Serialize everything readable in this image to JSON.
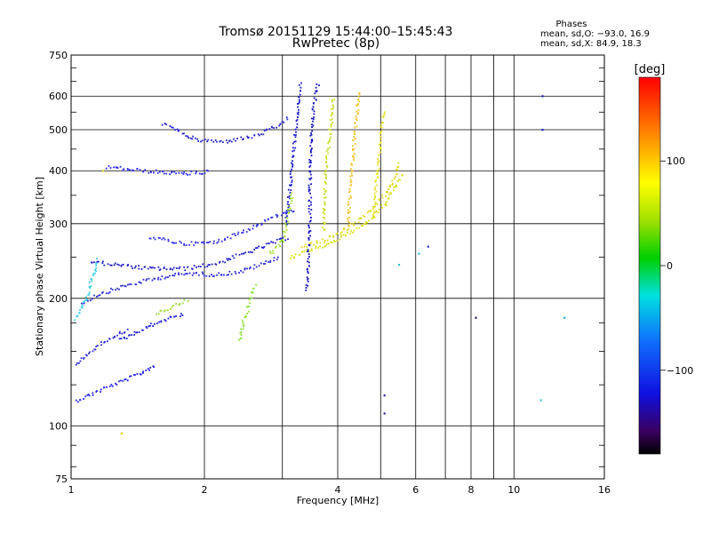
{
  "title": {
    "line1": "Tromsø 20151129 15:44:00–15:45:43",
    "line2": "RwPretec (8p)"
  },
  "stats": {
    "heading": "Phases",
    "o_line": "mean, sd,O: −93.0, 16.9",
    "x_line": "mean, sd,X:  84.9, 18.3"
  },
  "colorbar": {
    "unit": "[deg]",
    "ticks": [
      {
        "value": 100,
        "label": "100"
      },
      {
        "value": 0,
        "label": "0"
      },
      {
        "value": -100,
        "label": "−100"
      }
    ],
    "range": [
      -180,
      180
    ]
  },
  "chart_data": {
    "type": "scatter",
    "xlabel": "Frequency [MHz]",
    "ylabel": "Stationary phase Virtual Height [km]",
    "x_scale": "log",
    "y_scale": "log",
    "xlim": [
      1,
      16
    ],
    "ylim": [
      75,
      750
    ],
    "x_ticks": [
      {
        "value": 1,
        "label": "1"
      },
      {
        "value": 2,
        "label": "2"
      },
      {
        "value": 4,
        "label": "4"
      },
      {
        "value": 6,
        "label": "6"
      },
      {
        "value": 8,
        "label": "8"
      },
      {
        "value": 10,
        "label": "10"
      },
      {
        "value": 16,
        "label": "16"
      }
    ],
    "x_gridlines": [
      1,
      2,
      3,
      4,
      5,
      6,
      7,
      8,
      9,
      10,
      16
    ],
    "y_ticks": [
      {
        "value": 75,
        "label": "75"
      },
      {
        "value": 100,
        "label": "100"
      },
      {
        "value": 200,
        "label": "200"
      },
      {
        "value": 300,
        "label": "300"
      },
      {
        "value": 400,
        "label": "400"
      },
      {
        "value": 500,
        "label": "500"
      },
      {
        "value": 600,
        "label": "600"
      },
      {
        "value": 750,
        "label": "750"
      }
    ],
    "y_minor_ticks": [
      80,
      90,
      125,
      150,
      175,
      250,
      350,
      450,
      550,
      650,
      700
    ],
    "grid": true,
    "traces": [
      {
        "color": "#1f1fe6",
        "points": [
          [
            1.02,
            115
          ],
          [
            1.06,
            117
          ],
          [
            1.12,
            120
          ],
          [
            1.2,
            124
          ],
          [
            1.3,
            128
          ],
          [
            1.42,
            133
          ],
          [
            1.55,
            140
          ]
        ]
      },
      {
        "color": "#2a2ad8",
        "points": [
          [
            1.05,
            195
          ],
          [
            1.15,
            205
          ],
          [
            1.3,
            214
          ],
          [
            1.5,
            222
          ],
          [
            1.7,
            228
          ],
          [
            1.9,
            230
          ],
          [
            2.1,
            228
          ],
          [
            2.4,
            232
          ],
          [
            2.7,
            242
          ],
          [
            2.95,
            252
          ]
        ]
      },
      {
        "color": "#1c1cc8",
        "points": [
          [
            1.1,
            245
          ],
          [
            1.3,
            240
          ],
          [
            1.5,
            236
          ],
          [
            1.8,
            236
          ],
          [
            2.1,
            242
          ],
          [
            2.5,
            258
          ],
          [
            2.85,
            272
          ],
          [
            3.1,
            280
          ]
        ]
      },
      {
        "color": "#3030e0",
        "points": [
          [
            1.5,
            280
          ],
          [
            1.8,
            270
          ],
          [
            2.1,
            272
          ],
          [
            2.5,
            292
          ],
          [
            2.9,
            315
          ],
          [
            3.2,
            325
          ]
        ]
      },
      {
        "color": "#2424d0",
        "points": [
          [
            1.6,
            520
          ],
          [
            1.9,
            475
          ],
          [
            2.2,
            470
          ],
          [
            2.6,
            485
          ],
          [
            2.9,
            510
          ],
          [
            3.1,
            535
          ]
        ]
      },
      {
        "color": "#2a2aee",
        "points": [
          [
            1.2,
            410
          ],
          [
            1.5,
            400
          ],
          [
            1.8,
            395
          ],
          [
            2.05,
            400
          ]
        ]
      },
      {
        "color": "#1a1ad4",
        "points": [
          [
            1.28,
            160
          ],
          [
            1.45,
            170
          ],
          [
            1.6,
            178
          ],
          [
            1.8,
            185
          ]
        ]
      },
      {
        "color": "#2b2bd8",
        "points": [
          [
            1.02,
            140
          ],
          [
            1.1,
            150
          ],
          [
            1.2,
            160
          ],
          [
            1.35,
            170
          ]
        ]
      },
      {
        "color": "#1010c0",
        "points": [
          [
            3.4,
            210
          ],
          [
            3.42,
            260
          ],
          [
            3.45,
            320
          ],
          [
            3.45,
            380
          ],
          [
            3.46,
            430
          ],
          [
            3.47,
            480
          ],
          [
            3.5,
            540
          ],
          [
            3.55,
            600
          ],
          [
            3.6,
            650
          ]
        ]
      },
      {
        "color": "#1818d0",
        "points": [
          [
            3.05,
            300
          ],
          [
            3.1,
            360
          ],
          [
            3.15,
            420
          ],
          [
            3.2,
            500
          ],
          [
            3.25,
            580
          ],
          [
            3.28,
            650
          ]
        ]
      },
      {
        "color": "#d8e016",
        "points": [
          [
            3.1,
            250
          ],
          [
            3.4,
            260
          ],
          [
            3.8,
            270
          ],
          [
            4.2,
            285
          ],
          [
            4.6,
            300
          ],
          [
            5.1,
            335
          ],
          [
            5.6,
            395
          ]
        ]
      },
      {
        "color": "#e0d81a",
        "points": [
          [
            3.3,
            265
          ],
          [
            3.7,
            275
          ],
          [
            4.1,
            290
          ],
          [
            4.6,
            315
          ],
          [
            5.2,
            360
          ],
          [
            5.5,
            420
          ]
        ]
      },
      {
        "color": "#c8dc20",
        "points": [
          [
            3.7,
            290
          ],
          [
            3.72,
            340
          ],
          [
            3.75,
            400
          ],
          [
            3.8,
            460
          ],
          [
            3.85,
            520
          ],
          [
            3.9,
            600
          ]
        ]
      },
      {
        "color": "#f0c020",
        "points": [
          [
            4.2,
            300
          ],
          [
            4.25,
            360
          ],
          [
            4.3,
            420
          ],
          [
            4.35,
            480
          ],
          [
            4.4,
            540
          ],
          [
            4.45,
            620
          ]
        ]
      },
      {
        "color": "#e6e21e",
        "points": [
          [
            4.8,
            310
          ],
          [
            4.85,
            360
          ],
          [
            4.9,
            400
          ],
          [
            4.95,
            450
          ],
          [
            5.0,
            500
          ],
          [
            5.1,
            560
          ]
        ]
      },
      {
        "color": "#8ae034",
        "points": [
          [
            2.4,
            160
          ],
          [
            2.42,
            170
          ],
          [
            2.45,
            180
          ],
          [
            2.5,
            190
          ],
          [
            2.55,
            205
          ],
          [
            2.6,
            218
          ]
        ]
      },
      {
        "color": "#a0e028",
        "points": [
          [
            2.8,
            255
          ],
          [
            2.9,
            265
          ],
          [
            3.0,
            275
          ],
          [
            3.05,
            300
          ],
          [
            3.1,
            330
          ],
          [
            3.15,
            360
          ]
        ]
      },
      {
        "color": "#30d0e0",
        "points": [
          [
            1.02,
            180
          ],
          [
            1.05,
            190
          ],
          [
            1.08,
            200
          ],
          [
            1.1,
            215
          ],
          [
            1.12,
            230
          ],
          [
            1.15,
            250
          ]
        ]
      },
      {
        "color": "#9ed83c",
        "points": [
          [
            1.55,
            185
          ],
          [
            1.65,
            190
          ],
          [
            1.75,
            195
          ],
          [
            1.85,
            200
          ]
        ]
      }
    ],
    "outliers": [
      {
        "x": 5.1,
        "y": 118,
        "color": "#3020a0"
      },
      {
        "x": 5.1,
        "y": 107,
        "color": "#3020a0"
      },
      {
        "x": 8.2,
        "y": 180,
        "color": "#3a1a7a"
      },
      {
        "x": 13,
        "y": 180,
        "color": "#30a0e0"
      },
      {
        "x": 11.5,
        "y": 115,
        "color": "#40c0e0"
      },
      {
        "x": 11.6,
        "y": 600,
        "color": "#2020d0"
      },
      {
        "x": 11.6,
        "y": 500,
        "color": "#2020d0"
      },
      {
        "x": 6.4,
        "y": 265,
        "color": "#3030e0"
      },
      {
        "x": 6.1,
        "y": 255,
        "color": "#30c0e0"
      },
      {
        "x": 5.5,
        "y": 240,
        "color": "#30c0e0"
      },
      {
        "x": 1.3,
        "y": 96,
        "color": "#e6d020"
      },
      {
        "x": 1.18,
        "y": 400,
        "color": "#d8d820"
      }
    ]
  }
}
